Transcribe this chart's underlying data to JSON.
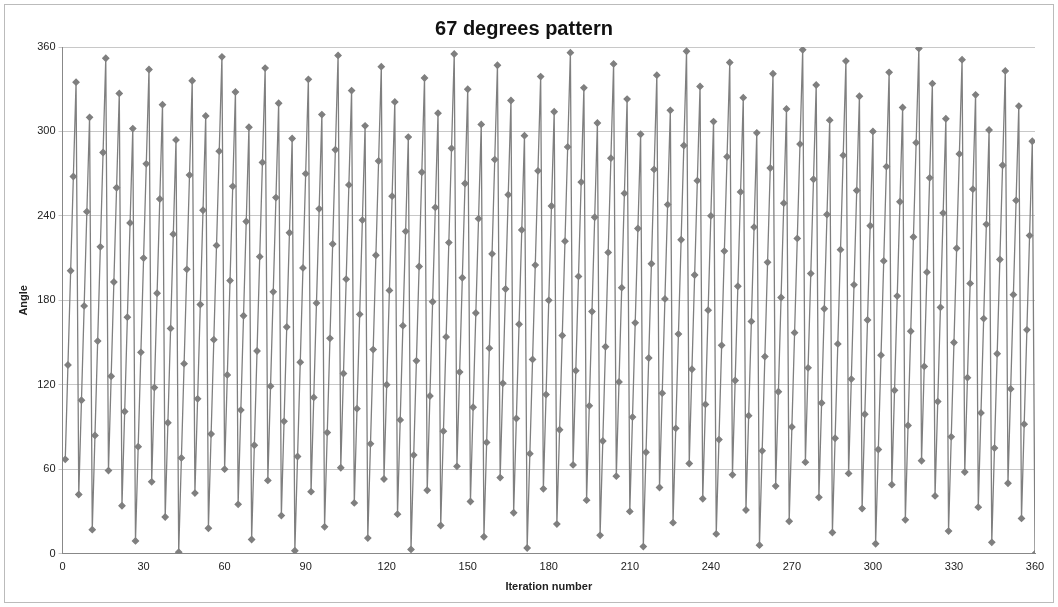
{
  "chart_data": {
    "type": "line",
    "title": "67 degrees pattern",
    "xlabel": "Iteration number",
    "ylabel": "Angle",
    "x": [
      1,
      2,
      3,
      4,
      5,
      6,
      7,
      8,
      9,
      10,
      11,
      12,
      13,
      14,
      15,
      16,
      17,
      18,
      19,
      20,
      21,
      22,
      23,
      24,
      25,
      26,
      27,
      28,
      29,
      30,
      31,
      32,
      33,
      34,
      35,
      36,
      37,
      38,
      39,
      40,
      41,
      42,
      43,
      44,
      45,
      46,
      47,
      48,
      49,
      50,
      51,
      52,
      53,
      54,
      55,
      56,
      57,
      58,
      59,
      60,
      61,
      62,
      63,
      64,
      65,
      66,
      67,
      68,
      69,
      70,
      71,
      72,
      73,
      74,
      75,
      76,
      77,
      78,
      79,
      80,
      81,
      82,
      83,
      84,
      85,
      86,
      87,
      88,
      89,
      90,
      91,
      92,
      93,
      94,
      95,
      96,
      97,
      98,
      99,
      100,
      101,
      102,
      103,
      104,
      105,
      106,
      107,
      108,
      109,
      110,
      111,
      112,
      113,
      114,
      115,
      116,
      117,
      118,
      119,
      120,
      121,
      122,
      123,
      124,
      125,
      126,
      127,
      128,
      129,
      130,
      131,
      132,
      133,
      134,
      135,
      136,
      137,
      138,
      139,
      140,
      141,
      142,
      143,
      144,
      145,
      146,
      147,
      148,
      149,
      150,
      151,
      152,
      153,
      154,
      155,
      156,
      157,
      158,
      159,
      160,
      161,
      162,
      163,
      164,
      165,
      166,
      167,
      168,
      169,
      170,
      171,
      172,
      173,
      174,
      175,
      176,
      177,
      178,
      179,
      180,
      181,
      182,
      183,
      184,
      185,
      186,
      187,
      188,
      189,
      190,
      191,
      192,
      193,
      194,
      195,
      196,
      197,
      198,
      199,
      200,
      201,
      202,
      203,
      204,
      205,
      206,
      207,
      208,
      209,
      210,
      211,
      212,
      213,
      214,
      215,
      216,
      217,
      218,
      219,
      220,
      221,
      222,
      223,
      224,
      225,
      226,
      227,
      228,
      229,
      230,
      231,
      232,
      233,
      234,
      235,
      236,
      237,
      238,
      239,
      240,
      241,
      242,
      243,
      244,
      245,
      246,
      247,
      248,
      249,
      250,
      251,
      252,
      253,
      254,
      255,
      256,
      257,
      258,
      259,
      260,
      261,
      262,
      263,
      264,
      265,
      266,
      267,
      268,
      269,
      270,
      271,
      272,
      273,
      274,
      275,
      276,
      277,
      278,
      279,
      280,
      281,
      282,
      283,
      284,
      285,
      286,
      287,
      288,
      289,
      290,
      291,
      292,
      293,
      294,
      295,
      296,
      297,
      298,
      299,
      300,
      301,
      302,
      303,
      304,
      305,
      306,
      307,
      308,
      309,
      310,
      311,
      312,
      313,
      314,
      315,
      316,
      317,
      318,
      319,
      320,
      321,
      322,
      323,
      324,
      325,
      326,
      327,
      328,
      329,
      330,
      331,
      332,
      333,
      334,
      335,
      336,
      337,
      338,
      339,
      340,
      341,
      342,
      343,
      344,
      345,
      346,
      347,
      348,
      349,
      350,
      351,
      352,
      353,
      354,
      355,
      356,
      357,
      358,
      359,
      360
    ],
    "series": [
      {
        "color": "#7f7f7f",
        "values": [
          67,
          134,
          201,
          268,
          335,
          42,
          109,
          176,
          243,
          310,
          17,
          84,
          151,
          218,
          285,
          352,
          59,
          126,
          193,
          260,
          327,
          34,
          101,
          168,
          235,
          302,
          9,
          76,
          143,
          210,
          277,
          344,
          51,
          118,
          185,
          252,
          319,
          26,
          93,
          160,
          227,
          294,
          1,
          68,
          135,
          202,
          269,
          336,
          43,
          110,
          177,
          244,
          311,
          18,
          85,
          152,
          219,
          286,
          353,
          60,
          127,
          194,
          261,
          328,
          35,
          102,
          169,
          236,
          303,
          10,
          77,
          144,
          211,
          278,
          345,
          52,
          119,
          186,
          253,
          320,
          27,
          94,
          161,
          228,
          295,
          2,
          69,
          136,
          203,
          270,
          337,
          44,
          111,
          178,
          245,
          312,
          19,
          86,
          153,
          220,
          287,
          354,
          61,
          128,
          195,
          262,
          329,
          36,
          103,
          170,
          237,
          304,
          11,
          78,
          145,
          212,
          279,
          346,
          53,
          120,
          187,
          254,
          321,
          28,
          95,
          162,
          229,
          296,
          3,
          70,
          137,
          204,
          271,
          338,
          45,
          112,
          179,
          246,
          313,
          20,
          87,
          154,
          221,
          288,
          355,
          62,
          129,
          196,
          263,
          330,
          37,
          104,
          171,
          238,
          305,
          12,
          79,
          146,
          213,
          280,
          347,
          54,
          121,
          188,
          255,
          322,
          29,
          96,
          163,
          230,
          297,
          4,
          71,
          138,
          205,
          272,
          339,
          46,
          113,
          180,
          247,
          314,
          21,
          88,
          155,
          222,
          289,
          356,
          63,
          130,
          197,
          264,
          331,
          38,
          105,
          172,
          239,
          306,
          13,
          80,
          147,
          214,
          281,
          348,
          55,
          122,
          189,
          256,
          323,
          30,
          97,
          164,
          231,
          298,
          5,
          72,
          139,
          206,
          273,
          340,
          47,
          114,
          181,
          248,
          315,
          22,
          89,
          156,
          223,
          290,
          357,
          64,
          131,
          198,
          265,
          332,
          39,
          106,
          173,
          240,
          307,
          14,
          81,
          148,
          215,
          282,
          349,
          56,
          123,
          190,
          257,
          324,
          31,
          98,
          165,
          232,
          299,
          6,
          73,
          140,
          207,
          274,
          341,
          48,
          115,
          182,
          249,
          316,
          23,
          90,
          157,
          224,
          291,
          358,
          65,
          132,
          199,
          266,
          333,
          40,
          107,
          174,
          241,
          308,
          15,
          82,
          149,
          216,
          283,
          350,
          57,
          124,
          191,
          258,
          325,
          32,
          99,
          166,
          233,
          300,
          7,
          74,
          141,
          208,
          275,
          342,
          49,
          116,
          183,
          250,
          317,
          24,
          91,
          158,
          225,
          292,
          359,
          66,
          133,
          200,
          267,
          334,
          41,
          108,
          175,
          242,
          309,
          16,
          83,
          150,
          217,
          284,
          351,
          58,
          125,
          192,
          259,
          326,
          33,
          100,
          167,
          234,
          301,
          8,
          75,
          142,
          209,
          276,
          343,
          50,
          117,
          184,
          251,
          318,
          25,
          92,
          159,
          226,
          293,
          0
        ]
      }
    ],
    "xlim": [
      0,
      360
    ],
    "xticks": [
      0,
      30,
      60,
      90,
      120,
      150,
      180,
      210,
      240,
      270,
      300,
      330,
      360
    ],
    "ylim": [
      0,
      360
    ],
    "yticks": [
      0,
      60,
      120,
      180,
      240,
      300,
      360
    ],
    "grid": "y",
    "legend": false,
    "marker": "diamond",
    "line_style": "solid"
  }
}
